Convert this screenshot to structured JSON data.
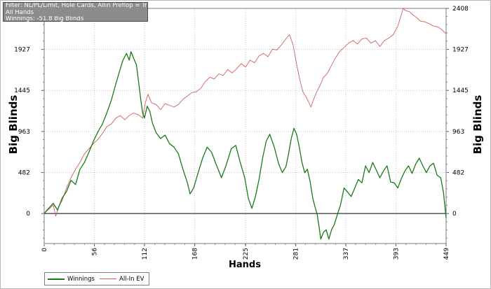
{
  "info": {
    "filter_line": "Filter: NL/PL/Limit, Hole Cards, Allin Preflop = True",
    "hands_line": "All Hands",
    "winnings_line": "Winnings: -51.8 Big Blinds"
  },
  "colors": {
    "winnings": "#1a7a1a",
    "allin_ev": "#d06060",
    "grid": "#c8c8c8",
    "zero_line": "#000000",
    "info_bg": "#8c8c8c"
  },
  "chart_data": {
    "type": "line",
    "xlabel": "Hands",
    "ylabel": "Big Blinds",
    "xlim": [
      0,
      449
    ],
    "ylim": [
      -352,
      2408
    ],
    "x_ticks": [
      "0",
      "56",
      "112",
      "168",
      "225",
      "281",
      "337",
      "393",
      "449"
    ],
    "y_ticks": [
      "0",
      "482",
      "963",
      "1445",
      "1927",
      "2408"
    ],
    "grid": true,
    "legend_position": "bottom-left",
    "series": [
      {
        "name": "Winnings",
        "color": "#1a7a1a",
        "points": [
          [
            0,
            0
          ],
          [
            5,
            60
          ],
          [
            10,
            120
          ],
          [
            15,
            40
          ],
          [
            20,
            180
          ],
          [
            25,
            260
          ],
          [
            30,
            390
          ],
          [
            35,
            340
          ],
          [
            40,
            520
          ],
          [
            45,
            600
          ],
          [
            50,
            720
          ],
          [
            55,
            850
          ],
          [
            60,
            960
          ],
          [
            65,
            1050
          ],
          [
            70,
            1180
          ],
          [
            75,
            1330
          ],
          [
            80,
            1520
          ],
          [
            85,
            1700
          ],
          [
            88,
            1800
          ],
          [
            92,
            1880
          ],
          [
            95,
            1800
          ],
          [
            97,
            1900
          ],
          [
            100,
            1820
          ],
          [
            103,
            1750
          ],
          [
            106,
            1500
          ],
          [
            108,
            1330
          ],
          [
            110,
            1180
          ],
          [
            112,
            1120
          ],
          [
            115,
            1260
          ],
          [
            118,
            1200
          ],
          [
            121,
            1060
          ],
          [
            125,
            950
          ],
          [
            130,
            880
          ],
          [
            135,
            920
          ],
          [
            140,
            820
          ],
          [
            145,
            780
          ],
          [
            150,
            700
          ],
          [
            155,
            520
          ],
          [
            160,
            360
          ],
          [
            163,
            230
          ],
          [
            167,
            300
          ],
          [
            172,
            480
          ],
          [
            177,
            650
          ],
          [
            182,
            780
          ],
          [
            187,
            720
          ],
          [
            192,
            580
          ],
          [
            198,
            420
          ],
          [
            203,
            560
          ],
          [
            209,
            760
          ],
          [
            214,
            800
          ],
          [
            219,
            600
          ],
          [
            224,
            420
          ],
          [
            228,
            180
          ],
          [
            232,
            60
          ],
          [
            236,
            200
          ],
          [
            240,
            400
          ],
          [
            244,
            650
          ],
          [
            248,
            850
          ],
          [
            252,
            930
          ],
          [
            257,
            780
          ],
          [
            262,
            580
          ],
          [
            266,
            480
          ],
          [
            270,
            550
          ],
          [
            273,
            700
          ],
          [
            276,
            880
          ],
          [
            279,
            1000
          ],
          [
            282,
            930
          ],
          [
            285,
            780
          ],
          [
            288,
            600
          ],
          [
            291,
            480
          ],
          [
            294,
            520
          ],
          [
            297,
            380
          ],
          [
            300,
            180
          ],
          [
            302,
            100
          ],
          [
            305,
            -10
          ],
          [
            307,
            -150
          ],
          [
            309,
            -300
          ],
          [
            312,
            -220
          ],
          [
            315,
            -190
          ],
          [
            318,
            -300
          ],
          [
            321,
            -190
          ],
          [
            324,
            -130
          ],
          [
            327,
            -30
          ],
          [
            331,
            100
          ],
          [
            335,
            300
          ],
          [
            339,
            250
          ],
          [
            343,
            200
          ],
          [
            347,
            300
          ],
          [
            351,
            400
          ],
          [
            355,
            360
          ],
          [
            359,
            560
          ],
          [
            363,
            480
          ],
          [
            367,
            600
          ],
          [
            371,
            510
          ],
          [
            375,
            420
          ],
          [
            379,
            500
          ],
          [
            383,
            560
          ],
          [
            387,
            370
          ],
          [
            391,
            360
          ],
          [
            395,
            300
          ],
          [
            399,
            410
          ],
          [
            403,
            500
          ],
          [
            407,
            560
          ],
          [
            411,
            470
          ],
          [
            415,
            580
          ],
          [
            419,
            650
          ],
          [
            423,
            560
          ],
          [
            427,
            480
          ],
          [
            431,
            560
          ],
          [
            435,
            590
          ],
          [
            439,
            450
          ],
          [
            443,
            420
          ],
          [
            446,
            250
          ],
          [
            449,
            -52
          ]
        ]
      },
      {
        "name": "All-In EV",
        "color": "#d06060",
        "points": [
          [
            0,
            0
          ],
          [
            5,
            50
          ],
          [
            10,
            100
          ],
          [
            13,
            -30
          ],
          [
            16,
            80
          ],
          [
            20,
            150
          ],
          [
            25,
            300
          ],
          [
            30,
            420
          ],
          [
            35,
            520
          ],
          [
            40,
            600
          ],
          [
            45,
            700
          ],
          [
            50,
            760
          ],
          [
            55,
            820
          ],
          [
            60,
            870
          ],
          [
            65,
            940
          ],
          [
            70,
            1020
          ],
          [
            75,
            1050
          ],
          [
            80,
            1120
          ],
          [
            85,
            1150
          ],
          [
            90,
            1100
          ],
          [
            95,
            1150
          ],
          [
            100,
            1180
          ],
          [
            105,
            1160
          ],
          [
            110,
            1120
          ],
          [
            113,
            1300
          ],
          [
            116,
            1400
          ],
          [
            120,
            1300
          ],
          [
            125,
            1280
          ],
          [
            130,
            1220
          ],
          [
            135,
            1290
          ],
          [
            140,
            1270
          ],
          [
            145,
            1250
          ],
          [
            150,
            1280
          ],
          [
            155,
            1340
          ],
          [
            160,
            1380
          ],
          [
            165,
            1420
          ],
          [
            170,
            1430
          ],
          [
            175,
            1470
          ],
          [
            180,
            1550
          ],
          [
            185,
            1600
          ],
          [
            190,
            1580
          ],
          [
            195,
            1640
          ],
          [
            200,
            1620
          ],
          [
            205,
            1690
          ],
          [
            210,
            1650
          ],
          [
            215,
            1700
          ],
          [
            220,
            1760
          ],
          [
            225,
            1720
          ],
          [
            230,
            1800
          ],
          [
            235,
            1770
          ],
          [
            240,
            1850
          ],
          [
            245,
            1880
          ],
          [
            250,
            1840
          ],
          [
            255,
            1930
          ],
          [
            260,
            1920
          ],
          [
            265,
            1980
          ],
          [
            270,
            2050
          ],
          [
            274,
            2100
          ],
          [
            278,
            1980
          ],
          [
            282,
            1750
          ],
          [
            286,
            1550
          ],
          [
            289,
            1430
          ],
          [
            292,
            1380
          ],
          [
            295,
            1320
          ],
          [
            298,
            1250
          ],
          [
            301,
            1340
          ],
          [
            304,
            1420
          ],
          [
            308,
            1500
          ],
          [
            312,
            1600
          ],
          [
            316,
            1640
          ],
          [
            320,
            1720
          ],
          [
            325,
            1820
          ],
          [
            330,
            1900
          ],
          [
            335,
            1950
          ],
          [
            340,
            2000
          ],
          [
            345,
            2030
          ],
          [
            350,
            1990
          ],
          [
            355,
            2050
          ],
          [
            360,
            2060
          ],
          [
            365,
            2000
          ],
          [
            370,
            2030
          ],
          [
            375,
            1960
          ],
          [
            380,
            2030
          ],
          [
            385,
            2060
          ],
          [
            390,
            2100
          ],
          [
            395,
            2200
          ],
          [
            398,
            2300
          ],
          [
            401,
            2408
          ],
          [
            404,
            2380
          ],
          [
            408,
            2370
          ],
          [
            412,
            2330
          ],
          [
            416,
            2300
          ],
          [
            420,
            2260
          ],
          [
            425,
            2250
          ],
          [
            430,
            2230
          ],
          [
            435,
            2200
          ],
          [
            440,
            2190
          ],
          [
            444,
            2160
          ],
          [
            449,
            2110
          ]
        ]
      }
    ]
  }
}
